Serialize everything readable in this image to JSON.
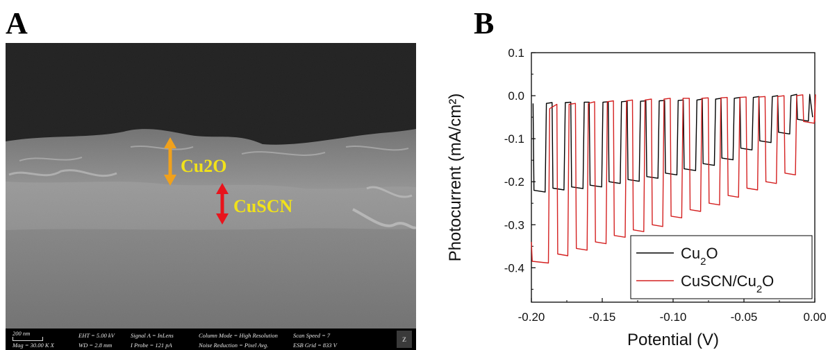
{
  "panels": {
    "a_label": "A",
    "b_label": "B"
  },
  "sem": {
    "annotations": {
      "cu2o": "Cu2O",
      "cuscn": "CuSCN"
    },
    "annotation_color": "#f1e21a",
    "arrow_colors": {
      "cu2o": "#f0a11c",
      "cuscn": "#e8141c"
    },
    "footer": {
      "scale": "200 nm",
      "mag": "Mag =  30.00 K X",
      "eht": "EHT =  5.00 kV",
      "wd": "WD =  2.8 mm",
      "signal": "Signal A = InLens",
      "iprobe": "I Probe =    121 pA",
      "column_mode": "Column Mode = High Resolution",
      "noise": "Noise Reduction = Pixel Avg.",
      "scan_speed": "Scan Speed = 7",
      "esb_grid": "ESB Grid =   833 V"
    }
  },
  "chart_data": {
    "type": "line",
    "xlabel": "Potential (V)",
    "ylabel": "Photocurrent (mA/cm²)",
    "xlim": [
      -0.2,
      0.0
    ],
    "ylim": [
      -0.48,
      0.1
    ],
    "x_ticks": [
      "-0.20",
      "-0.15",
      "-0.10",
      "-0.05",
      "0.00"
    ],
    "x_tick_values": [
      -0.2,
      -0.15,
      -0.1,
      -0.05,
      0.0
    ],
    "y_ticks": [
      "0.1",
      "0.0",
      "-0.1",
      "-0.2",
      "-0.3",
      "-0.4"
    ],
    "y_tick_values": [
      0.1,
      0.0,
      -0.1,
      -0.2,
      -0.3,
      -0.4
    ],
    "legend_position": "bottom-right",
    "series": [
      {
        "name": "Cu₂O",
        "legend_base": "Cu",
        "legend_sub": "2",
        "legend_tail": "O",
        "color": "#000000",
        "pulses": [
          {
            "on": -0.1988,
            "off": -0.19,
            "dark": -0.018,
            "light": -0.22
          },
          {
            "on": -0.1854,
            "off": -0.1767,
            "dark": -0.016,
            "light": -0.215
          },
          {
            "on": -0.1722,
            "off": -0.1633,
            "dark": -0.015,
            "light": -0.212
          },
          {
            "on": -0.1592,
            "off": -0.1501,
            "dark": -0.015,
            "light": -0.208
          },
          {
            "on": -0.1458,
            "off": -0.137,
            "dark": -0.014,
            "light": -0.2
          },
          {
            "on": -0.1324,
            "off": -0.1236,
            "dark": -0.013,
            "light": -0.195
          },
          {
            "on": -0.1192,
            "off": -0.1104,
            "dark": -0.012,
            "light": -0.188
          },
          {
            "on": -0.106,
            "off": -0.097,
            "dark": -0.011,
            "light": -0.18
          },
          {
            "on": -0.0928,
            "off": -0.0838,
            "dark": -0.01,
            "light": -0.17
          },
          {
            "on": -0.0794,
            "off": -0.0706,
            "dark": -0.008,
            "light": -0.158
          },
          {
            "on": -0.0662,
            "off": -0.0574,
            "dark": -0.006,
            "light": -0.145
          },
          {
            "on": -0.0528,
            "off": -0.044,
            "dark": -0.004,
            "light": -0.122
          },
          {
            "on": -0.0394,
            "off": -0.0306,
            "dark": -0.002,
            "light": -0.105
          },
          {
            "on": -0.0262,
            "off": -0.0174,
            "dark": 0.0,
            "light": -0.085
          },
          {
            "on": -0.0128,
            "off": -0.0042,
            "dark": 0.003,
            "light": -0.055
          }
        ],
        "end": {
          "x": -0.0015,
          "y": -0.05
        }
      },
      {
        "name": "CuSCN/Cu₂O",
        "legend_base": "CuSCN/Cu",
        "legend_sub": "2",
        "legend_tail": "O",
        "color": "#d42020",
        "pulses": [
          {
            "on": -0.2,
            "off": -0.1877,
            "dark": -0.03,
            "light": -0.385
          },
          {
            "on": -0.182,
            "off": -0.174,
            "dark": -0.02,
            "light": -0.368
          },
          {
            "on": -0.1689,
            "off": -0.1604,
            "dark": -0.018,
            "light": -0.355
          },
          {
            "on": -0.1554,
            "off": -0.147,
            "dark": -0.014,
            "light": -0.34
          },
          {
            "on": -0.1421,
            "off": -0.1335,
            "dark": -0.012,
            "light": -0.325
          },
          {
            "on": -0.1287,
            "off": -0.1204,
            "dark": -0.01,
            "light": -0.312
          },
          {
            "on": -0.1153,
            "off": -0.107,
            "dark": -0.008,
            "light": -0.3
          },
          {
            "on": -0.102,
            "off": -0.0936,
            "dark": -0.006,
            "light": -0.28
          },
          {
            "on": -0.0886,
            "off": -0.0803,
            "dark": -0.006,
            "light": -0.265
          },
          {
            "on": -0.0752,
            "off": -0.0669,
            "dark": -0.005,
            "light": -0.25
          },
          {
            "on": -0.0618,
            "off": -0.0535,
            "dark": -0.004,
            "light": -0.232
          },
          {
            "on": -0.0485,
            "off": -0.0401,
            "dark": -0.003,
            "light": -0.215
          },
          {
            "on": -0.0351,
            "off": -0.0268,
            "dark": -0.002,
            "light": -0.2
          },
          {
            "on": -0.0217,
            "off": -0.0134,
            "dark": 0.0,
            "light": -0.18
          },
          {
            "on": -0.0085,
            "off": -0.0001,
            "dark": 0.002,
            "light": -0.06
          }
        ],
        "start": {
          "x": -0.2,
          "y": -0.34
        },
        "end": {
          "x": 0.0,
          "y": -0.06
        }
      }
    ]
  }
}
